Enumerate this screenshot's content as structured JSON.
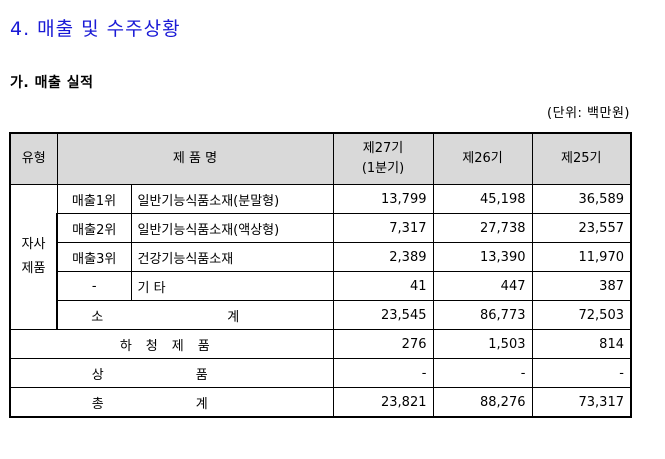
{
  "heading": "4. 매출 및 수주상황",
  "subheading": "가. 매출 실적",
  "unit": "(단위: 백만원)",
  "table": {
    "headers": {
      "type": "유형",
      "product": "제 품 명",
      "fy27_line1": "제27기",
      "fy27_line2": "(1분기)",
      "fy26": "제26기",
      "fy25": "제25기"
    },
    "group_label_line1": "자사",
    "group_label_line2": "제품",
    "rows": [
      {
        "rank": "매출1위",
        "name": "일반기능식품소재(분말형)",
        "fy27": "13,799",
        "fy26": "45,198",
        "fy25": "36,589"
      },
      {
        "rank": "매출2위",
        "name": "일반기능식품소재(액상형)",
        "fy27": "7,317",
        "fy26": "27,738",
        "fy25": "23,557"
      },
      {
        "rank": "매출3위",
        "name": "건강기능식품소재",
        "fy27": "2,389",
        "fy26": "13,390",
        "fy25": "11,970"
      },
      {
        "rank": "-",
        "name": "기 타",
        "fy27": "41",
        "fy26": "447",
        "fy25": "387"
      }
    ],
    "subtotal": {
      "label": "소 계",
      "fy27": "23,545",
      "fy26": "86,773",
      "fy25": "72,503"
    },
    "subcontract": {
      "label": "하청제품",
      "fy27": "276",
      "fy26": "1,503",
      "fy25": "814"
    },
    "goods": {
      "label": "상 품",
      "fy27": "-",
      "fy26": "-",
      "fy25": "-"
    },
    "total": {
      "label": "총 계",
      "fy27": "23,821",
      "fy26": "88,276",
      "fy25": "73,317"
    }
  }
}
